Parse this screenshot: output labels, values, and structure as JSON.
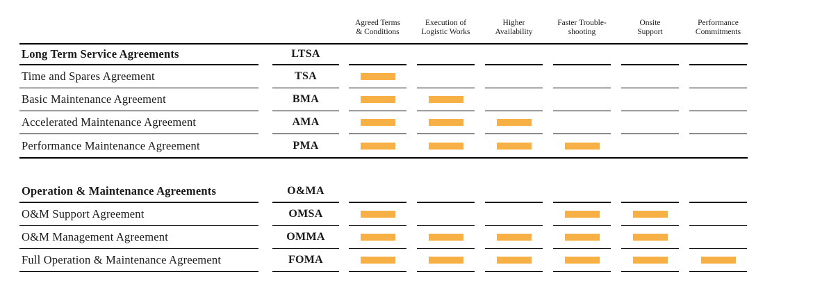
{
  "colors": {
    "bar": "#F7B045",
    "text": "#1a1a1a",
    "line": "#000000"
  },
  "columns": [
    {
      "label": "Agreed Terms\n& Conditions"
    },
    {
      "label": "Execution of\nLogistic Works"
    },
    {
      "label": "Higher\nAvailability"
    },
    {
      "label": "Faster Trouble-\nshooting"
    },
    {
      "label": "Onsite\nSupport"
    },
    {
      "label": "Performance\nCommitments"
    }
  ],
  "sections": [
    {
      "header": {
        "name": "Long Term Service Agreements",
        "abbr": "LTSA"
      },
      "rows": [
        {
          "name": "Time and Spares Agreement",
          "abbr": "TSA",
          "features": [
            true,
            false,
            false,
            false,
            false,
            false
          ]
        },
        {
          "name": "Basic Maintenance Agreement",
          "abbr": "BMA",
          "features": [
            true,
            true,
            false,
            false,
            false,
            false
          ]
        },
        {
          "name": "Accelerated Maintenance Agreement",
          "abbr": "AMA",
          "features": [
            true,
            true,
            true,
            false,
            false,
            false
          ]
        },
        {
          "name": "Performance Maintenance Agreement",
          "abbr": "PMA",
          "features": [
            true,
            true,
            true,
            true,
            false,
            false
          ]
        }
      ]
    },
    {
      "header": {
        "name": "Operation & Maintenance Agreements",
        "abbr": "O&MA"
      },
      "rows": [
        {
          "name": "O&M Support Agreement",
          "abbr": "OMSA",
          "features": [
            true,
            false,
            false,
            true,
            true,
            false
          ]
        },
        {
          "name": "O&M Management Agreement",
          "abbr": "OMMA",
          "features": [
            true,
            true,
            true,
            true,
            true,
            false
          ]
        },
        {
          "name": "Full Operation & Maintenance Agreement",
          "abbr": "FOMA",
          "features": [
            true,
            true,
            true,
            true,
            true,
            true
          ]
        }
      ]
    }
  ]
}
